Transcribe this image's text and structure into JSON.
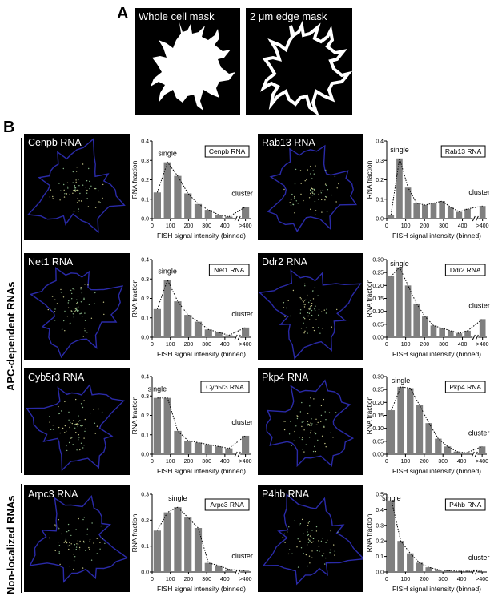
{
  "panelA": {
    "letter": "A",
    "whole_label": "Whole cell mask",
    "edge_label": "2 μm edge mask"
  },
  "panelB": {
    "letter": "B",
    "groups": [
      {
        "label": "APC-dependent RNAs"
      },
      {
        "label": "Non-localized RNAs"
      }
    ],
    "image_labels": [
      "Cenpb RNA",
      "Rab13 RNA",
      "Net1 RNA",
      "Ddr2 RNA",
      "Cyb5r3 RNA",
      "Pkp4 RNA",
      "Arpc3 RNA",
      "P4hb RNA"
    ]
  },
  "chart_data": [
    {
      "type": "bar",
      "title": "Cenpb RNA",
      "xlabel": "FISH signal intensity (binned)",
      "ylabel": "RNA fraction",
      "x_ticks": [
        "0",
        "100",
        "200",
        "300",
        "400",
        ">400"
      ],
      "ylim": [
        0,
        0.4
      ],
      "y_ticks": [
        "0.0",
        "0.1",
        "0.2",
        "0.3",
        "0.4"
      ],
      "annotations": {
        "single": "single",
        "cluster": "cluster"
      },
      "values": [
        0.135,
        0.29,
        0.22,
        0.13,
        0.075,
        0.045,
        0.02,
        0.01,
        0.06
      ]
    },
    {
      "type": "bar",
      "title": "Rab13 RNA",
      "xlabel": "FISH signal intensity (binned)",
      "ylabel": "RNA fraction",
      "x_ticks": [
        "0",
        "100",
        "200",
        "300",
        "400",
        ">400"
      ],
      "ylim": [
        0,
        0.4
      ],
      "y_ticks": [
        "0.0",
        "0.1",
        "0.2",
        "0.3",
        "0.4"
      ],
      "annotations": {
        "single": "single",
        "cluster": "cluster"
      },
      "values": [
        0.02,
        0.31,
        0.16,
        0.08,
        0.07,
        0.08,
        0.09,
        0.06,
        0.035,
        0.05,
        0.065
      ]
    },
    {
      "type": "bar",
      "title": "Net1 RNA",
      "xlabel": "FISH signal intensity (binned)",
      "ylabel": "RNA fraction",
      "x_ticks": [
        "0",
        "100",
        "200",
        "300",
        "400",
        ">400"
      ],
      "ylim": [
        0,
        0.4
      ],
      "y_ticks": [
        "0.0",
        "0.1",
        "0.2",
        "0.3",
        "0.4"
      ],
      "annotations": {
        "single": "single",
        "cluster": "cluster"
      },
      "values": [
        0.145,
        0.295,
        0.185,
        0.115,
        0.08,
        0.04,
        0.025,
        0.01,
        0.05
      ]
    },
    {
      "type": "bar",
      "title": "Ddr2 RNA",
      "xlabel": "FISH signal intensity (binned)",
      "ylabel": "RNA fraction",
      "x_ticks": [
        "0",
        "100",
        "200",
        "300",
        "400",
        ">400"
      ],
      "ylim": [
        0,
        0.3
      ],
      "y_ticks": [
        "0.00",
        "0.05",
        "0.10",
        "0.15",
        "0.20",
        "0.25",
        "0.30"
      ],
      "annotations": {
        "single": "single",
        "cluster": "cluster"
      },
      "values": [
        0.235,
        0.27,
        0.2,
        0.13,
        0.08,
        0.045,
        0.035,
        0.025,
        0.015,
        0.025,
        0.07
      ]
    },
    {
      "type": "bar",
      "title": "Cyb5r3 RNA",
      "xlabel": "FISH signal intensity (binned)",
      "ylabel": "RNA fraction",
      "x_ticks": [
        "0",
        "100",
        "200",
        "300",
        "400",
        ">400"
      ],
      "ylim": [
        0,
        0.4
      ],
      "y_ticks": [
        "0.0",
        "0.1",
        "0.2",
        "0.3",
        "0.4"
      ],
      "annotations": {
        "single": "single",
        "cluster": "cluster"
      },
      "values": [
        0.29,
        0.29,
        0.12,
        0.07,
        0.06,
        0.05,
        0.04,
        0.03,
        0.095
      ]
    },
    {
      "type": "bar",
      "title": "Pkp4 RNA",
      "xlabel": "FISH signal intensity (binned)",
      "ylabel": "RNA fraction",
      "x_ticks": [
        "0",
        "100",
        "200",
        "300",
        "400",
        ">400"
      ],
      "ylim": [
        0,
        0.3
      ],
      "y_ticks": [
        "0.00",
        "0.05",
        "0.10",
        "0.15",
        "0.20",
        "0.25",
        "0.30"
      ],
      "annotations": {
        "single": "single",
        "cluster": "cluster"
      },
      "values": [
        0.17,
        0.26,
        0.255,
        0.19,
        0.12,
        0.06,
        0.03,
        0.01,
        0.005,
        0.03
      ]
    },
    {
      "type": "bar",
      "title": "Arpc3 RNA",
      "xlabel": "FISH signal intensity (binned)",
      "ylabel": "RNA fraction",
      "x_ticks": [
        "0",
        "100",
        "200",
        "300",
        "400",
        ">400"
      ],
      "ylim": [
        0,
        0.3
      ],
      "y_ticks": [
        "0.0",
        "0.1",
        "0.2",
        "0.3"
      ],
      "annotations": {
        "single": "single",
        "cluster": "cluster"
      },
      "values": [
        0.16,
        0.23,
        0.25,
        0.21,
        0.17,
        0.035,
        0.025,
        0.01,
        0.005
      ]
    },
    {
      "type": "bar",
      "title": "P4hb RNA",
      "xlabel": "FISH signal intensity (binned)",
      "ylabel": "RNA fraction",
      "x_ticks": [
        "0",
        "100",
        "200",
        "300",
        "400",
        ">400"
      ],
      "ylim": [
        0,
        0.5
      ],
      "y_ticks": [
        "0.0",
        "0.1",
        "0.2",
        "0.3",
        "0.4",
        "0.5"
      ],
      "annotations": {
        "single": "single",
        "cluster": "cluster"
      },
      "values": [
        0.46,
        0.2,
        0.12,
        0.06,
        0.03,
        0.015,
        0.01,
        0.005,
        0.005,
        0.005
      ]
    }
  ]
}
